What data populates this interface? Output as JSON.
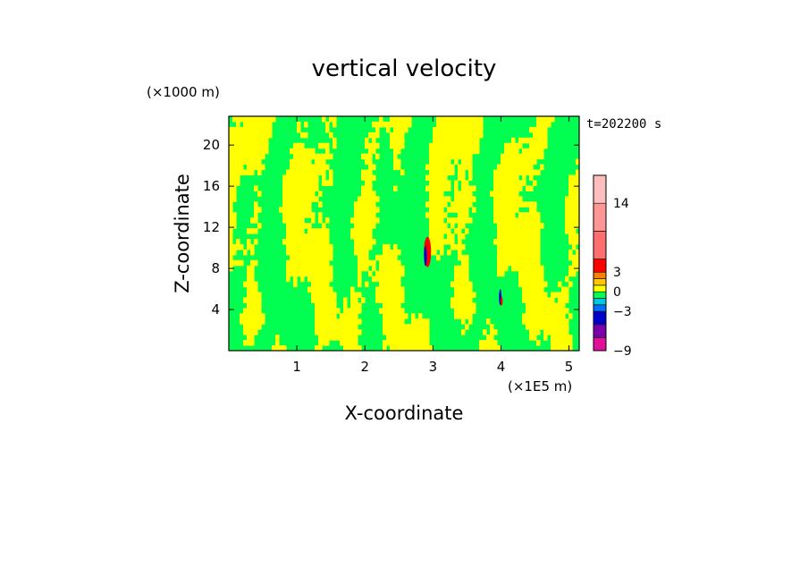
{
  "chart_data": {
    "type": "heatmap",
    "title": "vertical velocity",
    "xlabel": "X-coordinate",
    "ylabel": "Z-coordinate",
    "x_unit": "(×1E5 m)",
    "y_unit": "(×1000 m)",
    "time_label": "t=202200 s",
    "xlim": [
      0,
      5.15
    ],
    "ylim": [
      0,
      22.8
    ],
    "x_ticks": [
      1,
      2,
      3,
      4,
      5
    ],
    "y_ticks": [
      4,
      8,
      12,
      16,
      20
    ],
    "colorbar": {
      "tick_labels": [
        "14",
        "3",
        "0",
        "−3",
        "−9"
      ],
      "tick_values": [
        14,
        3,
        0,
        -3,
        -9
      ],
      "levels": [
        {
          "from": -9,
          "to": -7,
          "color": "#e0109a"
        },
        {
          "from": -7,
          "to": -5,
          "color": "#7a00aa"
        },
        {
          "from": -5,
          "to": -3,
          "color": "#0000cc"
        },
        {
          "from": -3,
          "to": -2,
          "color": "#0070ff"
        },
        {
          "from": -2,
          "to": -1,
          "color": "#00c8e0"
        },
        {
          "from": -1,
          "to": 0,
          "color": "#00ff50"
        },
        {
          "from": 0,
          "to": 1,
          "color": "#ffff00"
        },
        {
          "from": 1,
          "to": 2,
          "color": "#ffc800"
        },
        {
          "from": 2,
          "to": 3,
          "color": "#ff8000"
        },
        {
          "from": 3,
          "to": 6,
          "color": "#ff0000"
        },
        {
          "from": 6,
          "to": 10,
          "color": "#ff6e6e"
        },
        {
          "from": 10,
          "to": 14,
          "color": "#ff9696"
        },
        {
          "from": 14,
          "to": 18,
          "color": "#ffbebe"
        }
      ]
    },
    "colors": {
      "background_field": "#00ff50",
      "positive_field": "#ffff00",
      "updraft_core": "#ff0000",
      "downdraft_core": "#0000cc"
    }
  }
}
